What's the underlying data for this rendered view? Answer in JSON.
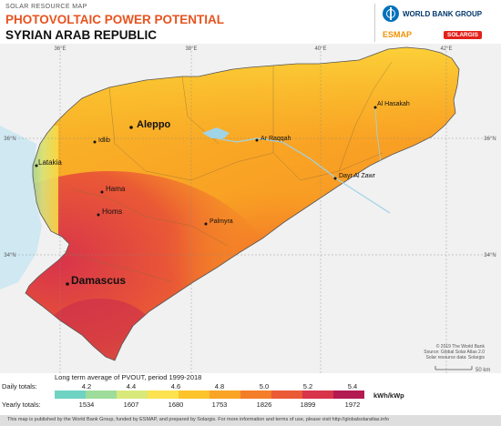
{
  "header": {
    "eyebrow": "SOLAR RESOURCE MAP",
    "title": "PHOTOVOLTAIC POWER POTENTIAL",
    "country": "SYRIAN ARAB REPUBLIC"
  },
  "logos": {
    "world_bank": "WORLD BANK GROUP",
    "esmap": "ESMAP",
    "solargis": "SOLARGIS"
  },
  "graticule": {
    "top_labels": [
      "36°E",
      "38°E",
      "40°E",
      "42°E"
    ],
    "left_labels": [
      "36°N",
      "34°N"
    ],
    "right_labels": [
      "36°N",
      "34°N"
    ]
  },
  "cities": [
    {
      "name": "Aleppo",
      "major": true
    },
    {
      "name": "Idlib",
      "major": false
    },
    {
      "name": "Latakia",
      "major": false
    },
    {
      "name": "Hama",
      "major": false
    },
    {
      "name": "Homs",
      "major": false
    },
    {
      "name": "Damascus",
      "major": true
    },
    {
      "name": "Palmyra",
      "major": false
    },
    {
      "name": "Ar Raqqah",
      "major": false
    },
    {
      "name": "Dayr Al Zawr",
      "major": false
    },
    {
      "name": "Al Hasakah",
      "major": false
    }
  ],
  "credits": [
    "© 2019 The World Bank",
    "Source: Global Solar Atlas 2.0",
    "Solar resource data: Solargis"
  ],
  "scale_label": "50 km",
  "legend": {
    "title": "Long term average of PVOUT, period 1999-2018",
    "daily_label": "Daily totals:",
    "yearly_label": "Yearly totals:",
    "daily_ticks": [
      "4.2",
      "4.4",
      "4.6",
      "4.8",
      "5.0",
      "5.2",
      "5.4"
    ],
    "yearly_ticks": [
      "1534",
      "1607",
      "1680",
      "1753",
      "1826",
      "1899",
      "1972"
    ],
    "unit": "kWh/kWp",
    "colors": [
      "#6fd3c4",
      "#9ddc9a",
      "#d8e87a",
      "#fde24f",
      "#fcc42a",
      "#f9a424",
      "#f47d27",
      "#ea5a35",
      "#d8344a",
      "#b41a52"
    ]
  },
  "colors": {
    "title": "#e8531f",
    "water": "#9fd3e6",
    "sea": "#cfe8f2"
  },
  "footer": "This map is published by the World Bank Group, funded by ESMAP, and prepared by Solargis. For more information and terms of use, please visit http://globalsolaratlas.info"
}
